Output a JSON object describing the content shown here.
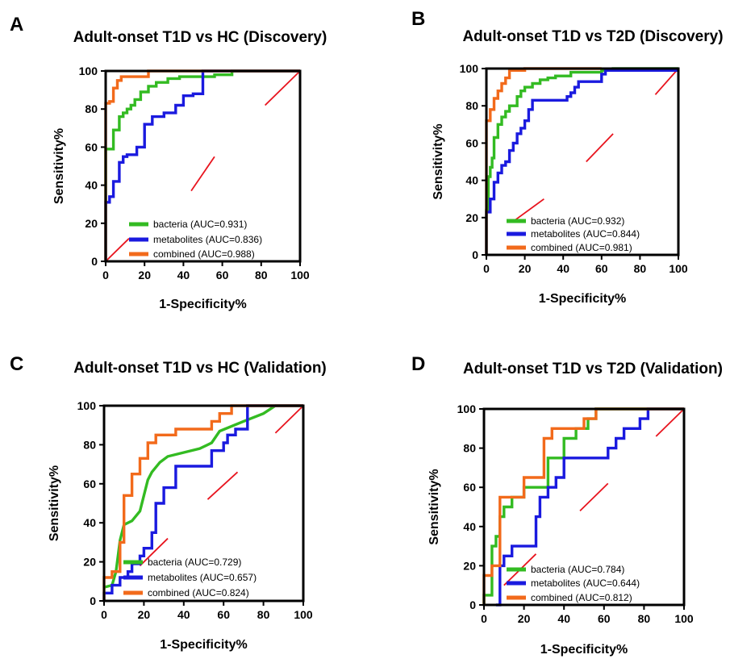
{
  "colors": {
    "bacteria": "#33bb22",
    "metabolites": "#1a1adf",
    "combined": "#f26a1b",
    "reference": "#e8141e",
    "axis": "#000000"
  },
  "chart_data": [
    {
      "panel": "A",
      "type": "line",
      "title": "Adult-onset T1D vs HC (Discovery)",
      "xlabel": "1-Specificity%",
      "ylabel": "Sensitivity%",
      "xlim": [
        0,
        100
      ],
      "ylim": [
        0,
        100
      ],
      "ticks": [
        "0",
        "20",
        "40",
        "60",
        "80",
        "100"
      ],
      "series": [
        {
          "key": "bacteria",
          "name": "bacteria (AUC=0.931)",
          "x": [
            0,
            0,
            4,
            4,
            7,
            7,
            9,
            9,
            11,
            11,
            13,
            13,
            15,
            15,
            18,
            18,
            22,
            22,
            26,
            26,
            32,
            32,
            38,
            38,
            56,
            56,
            65,
            65,
            100
          ],
          "y": [
            0,
            59,
            59,
            69,
            69,
            76,
            76,
            78,
            78,
            80,
            80,
            82,
            82,
            85,
            85,
            89,
            89,
            92,
            92,
            94,
            94,
            96,
            96,
            97,
            97,
            98,
            98,
            100,
            100
          ]
        },
        {
          "key": "metabolites",
          "name": "metabolites (AUC=0.836)",
          "x": [
            0,
            0,
            2,
            2,
            4,
            4,
            7,
            7,
            9,
            9,
            11,
            11,
            16,
            16,
            20,
            20,
            24,
            24,
            30,
            30,
            36,
            36,
            40,
            40,
            45,
            45,
            50,
            50,
            100
          ],
          "y": [
            0,
            31,
            31,
            34,
            34,
            42,
            42,
            52,
            52,
            55,
            55,
            56,
            56,
            60,
            60,
            72,
            72,
            76,
            76,
            78,
            78,
            82,
            82,
            87,
            87,
            88,
            88,
            100,
            100
          ]
        },
        {
          "key": "combined",
          "name": "combined (AUC=0.988)",
          "x": [
            0,
            0,
            2,
            2,
            4,
            4,
            6,
            6,
            8,
            8,
            22,
            22,
            100
          ],
          "y": [
            0,
            83,
            83,
            84,
            84,
            91,
            91,
            95,
            95,
            97,
            97,
            100,
            100
          ]
        }
      ],
      "reference_segments": [
        [
          0,
          0,
          12,
          12
        ],
        [
          44,
          37,
          56,
          55
        ],
        [
          82,
          82,
          100,
          100
        ]
      ]
    },
    {
      "panel": "B",
      "type": "line",
      "title": "Adult-onset T1D vs T2D (Discovery)",
      "xlabel": "1-Specificity%",
      "ylabel": "Sensitivity%",
      "xlim": [
        0,
        100
      ],
      "ylim": [
        0,
        100
      ],
      "ticks": [
        "0",
        "20",
        "40",
        "60",
        "80",
        "100"
      ],
      "series": [
        {
          "key": "bacteria",
          "name": "bacteria (AUC=0.932)",
          "x": [
            0,
            0,
            1,
            1,
            2,
            2,
            3,
            3,
            4,
            4,
            6,
            6,
            8,
            8,
            10,
            10,
            12,
            12,
            16,
            16,
            18,
            18,
            20,
            20,
            24,
            24,
            28,
            28,
            32,
            32,
            36,
            36,
            44,
            44,
            60,
            60,
            66,
            66,
            100
          ],
          "y": [
            0,
            24,
            24,
            42,
            42,
            47,
            47,
            52,
            52,
            63,
            63,
            70,
            70,
            74,
            74,
            77,
            77,
            80,
            80,
            85,
            85,
            88,
            88,
            90,
            90,
            92,
            92,
            94,
            94,
            95,
            95,
            96,
            96,
            98,
            98,
            99,
            99,
            100,
            100
          ]
        },
        {
          "key": "metabolites",
          "name": "metabolites (AUC=0.844)",
          "x": [
            0,
            0,
            2,
            2,
            4,
            4,
            6,
            6,
            8,
            8,
            10,
            10,
            12,
            12,
            14,
            14,
            16,
            16,
            18,
            18,
            20,
            20,
            22,
            22,
            24,
            24,
            42,
            42,
            44,
            44,
            46,
            46,
            48,
            48,
            60,
            60,
            62,
            62,
            100
          ],
          "y": [
            0,
            23,
            23,
            30,
            30,
            39,
            39,
            44,
            44,
            48,
            48,
            50,
            50,
            56,
            56,
            60,
            60,
            65,
            65,
            68,
            68,
            72,
            72,
            78,
            78,
            83,
            83,
            85,
            85,
            87,
            87,
            90,
            90,
            93,
            93,
            97,
            97,
            99,
            99
          ]
        },
        {
          "key": "combined",
          "name": "combined (AUC=0.981)",
          "x": [
            0,
            0,
            2,
            2,
            4,
            4,
            6,
            6,
            8,
            8,
            10,
            10,
            12,
            12,
            20,
            20,
            60
          ],
          "y": [
            0,
            72,
            72,
            78,
            78,
            84,
            84,
            88,
            88,
            92,
            92,
            95,
            95,
            99,
            99,
            100,
            100
          ]
        }
      ],
      "reference_segments": [
        [
          14,
          18,
          30,
          30
        ],
        [
          52,
          50,
          66,
          65
        ],
        [
          88,
          86,
          100,
          100
        ]
      ]
    },
    {
      "panel": "C",
      "type": "line",
      "title": "Adult-onset T1D vs HC (Validation)",
      "xlabel": "1-Specificity%",
      "ylabel": "Sensitivity%",
      "xlim": [
        0,
        100
      ],
      "ylim": [
        0,
        100
      ],
      "ticks": [
        "0",
        "20",
        "40",
        "60",
        "80",
        "100"
      ],
      "series": [
        {
          "key": "bacteria",
          "name": "bacteria (AUC=0.729)",
          "x": [
            0,
            0,
            4,
            4,
            6,
            6,
            8,
            8,
            10,
            10,
            14,
            14,
            18,
            18,
            20,
            20,
            22,
            22,
            24,
            24,
            28,
            28,
            32,
            32,
            48,
            48,
            54,
            54,
            58,
            58,
            70,
            70,
            80,
            80,
            86,
            86,
            100
          ],
          "y": [
            7,
            7,
            8,
            8,
            15,
            15,
            31,
            31,
            39,
            39,
            41,
            41,
            46,
            46,
            54,
            54,
            62,
            62,
            66,
            66,
            71,
            71,
            74,
            74,
            78,
            78,
            81,
            81,
            87,
            87,
            92,
            92,
            96,
            96,
            100,
            100,
            100
          ]
        },
        {
          "key": "metabolites",
          "name": "metabolites (AUC=0.657)",
          "x": [
            0,
            0,
            4,
            4,
            8,
            8,
            12,
            12,
            14,
            14,
            18,
            18,
            20,
            20,
            24,
            24,
            26,
            26,
            30,
            30,
            36,
            36,
            54,
            54,
            60,
            60,
            62,
            62,
            66,
            66,
            72,
            72,
            100
          ],
          "y": [
            0,
            4,
            4,
            8,
            8,
            12,
            12,
            15,
            15,
            19,
            19,
            23,
            23,
            27,
            27,
            35,
            35,
            50,
            50,
            58,
            58,
            69,
            69,
            77,
            77,
            81,
            81,
            85,
            85,
            88,
            88,
            100,
            100
          ]
        },
        {
          "key": "combined",
          "name": "combined (AUC=0.824)",
          "x": [
            0,
            0,
            4,
            4,
            8,
            8,
            10,
            10,
            14,
            14,
            18,
            18,
            22,
            22,
            26,
            26,
            36,
            36,
            54,
            54,
            58,
            58,
            64,
            64,
            70,
            70,
            100
          ],
          "y": [
            0,
            12,
            12,
            15,
            15,
            30,
            30,
            54,
            54,
            65,
            65,
            73,
            73,
            81,
            81,
            85,
            85,
            88,
            88,
            92,
            92,
            96,
            96,
            100,
            100,
            100,
            100
          ]
        }
      ],
      "reference_segments": [
        [
          18,
          18,
          32,
          32
        ],
        [
          52,
          52,
          67,
          66
        ],
        [
          86,
          86,
          100,
          100
        ]
      ]
    },
    {
      "panel": "D",
      "type": "line",
      "title": "Adult-onset T1D vs T2D (Validation)",
      "xlabel": "1-Specificity%",
      "ylabel": "Sensitivity%",
      "xlim": [
        0,
        100
      ],
      "ylim": [
        0,
        100
      ],
      "ticks": [
        "0",
        "20",
        "40",
        "60",
        "80",
        "100"
      ],
      "series": [
        {
          "key": "bacteria",
          "name": "bacteria (AUC=0.784)",
          "x": [
            0,
            0,
            4,
            4,
            6,
            6,
            8,
            8,
            10,
            10,
            14,
            14,
            20,
            20,
            26,
            26,
            32,
            32,
            36,
            36,
            40,
            40,
            46,
            46,
            52,
            52,
            56,
            56,
            100
          ],
          "y": [
            0,
            5,
            5,
            30,
            30,
            35,
            35,
            45,
            45,
            50,
            50,
            55,
            55,
            60,
            60,
            60,
            60,
            75,
            75,
            75,
            75,
            85,
            85,
            90,
            90,
            95,
            95,
            100,
            100
          ]
        },
        {
          "key": "metabolites",
          "name": "metabolites (AUC=0.644)",
          "x": [
            6,
            6,
            8,
            8,
            10,
            10,
            14,
            14,
            22,
            22,
            26,
            26,
            28,
            28,
            32,
            32,
            36,
            36,
            40,
            40,
            44,
            44,
            54,
            54,
            62,
            62,
            66,
            66,
            70,
            70,
            76,
            76,
            78,
            78,
            82,
            82,
            86,
            86,
            100
          ],
          "y": [
            0,
            0,
            0,
            20,
            20,
            25,
            25,
            30,
            30,
            30,
            30,
            45,
            45,
            55,
            55,
            60,
            60,
            65,
            65,
            75,
            75,
            75,
            75,
            75,
            75,
            80,
            80,
            85,
            85,
            90,
            90,
            90,
            90,
            95,
            95,
            100,
            100,
            100,
            100
          ]
        },
        {
          "key": "combined",
          "name": "combined (AUC=0.812)",
          "x": [
            0,
            0,
            4,
            4,
            8,
            8,
            20,
            20,
            30,
            30,
            34,
            34,
            50,
            50,
            56,
            56,
            68,
            68,
            100
          ],
          "y": [
            0,
            15,
            15,
            20,
            20,
            55,
            55,
            65,
            65,
            85,
            85,
            90,
            90,
            95,
            95,
            100,
            100,
            100,
            100
          ]
        }
      ],
      "reference_segments": [
        [
          10,
          10,
          26,
          26
        ],
        [
          48,
          48,
          62,
          62
        ],
        [
          86,
          86,
          100,
          100
        ]
      ]
    }
  ]
}
